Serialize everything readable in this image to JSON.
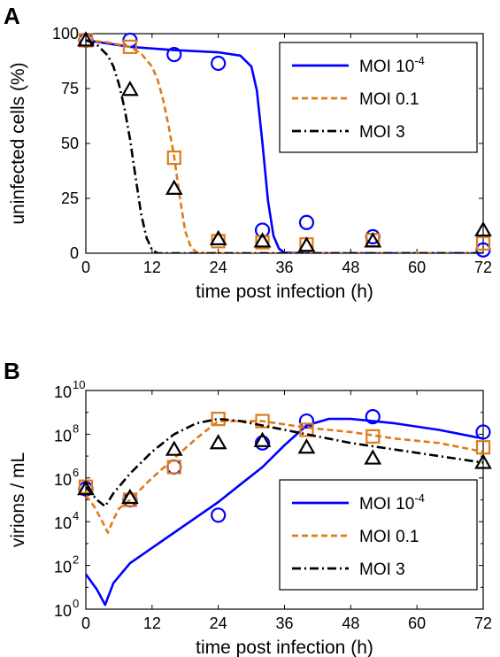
{
  "chart_data": [
    {
      "panel_label": "A",
      "type": "line",
      "xlabel": "time post infection (h)",
      "ylabel": "uninfected cells (%)",
      "xlim": [
        0,
        72
      ],
      "ylim": [
        0,
        100
      ],
      "xticks": [
        0,
        12,
        24,
        36,
        48,
        60,
        72
      ],
      "yticks": [
        0,
        25,
        50,
        75,
        100
      ],
      "yscale": "linear",
      "legend_position": "top-right",
      "series": [
        {
          "name": "MOI 10",
          "name_sup": "-4",
          "color": "#0000ff",
          "line": "solid",
          "marker": "circle",
          "curve": [
            [
              0,
              97
            ],
            [
              8,
              94
            ],
            [
              16,
              92.5
            ],
            [
              24,
              91.5
            ],
            [
              28,
              90
            ],
            [
              30,
              85
            ],
            [
              31,
              74
            ],
            [
              32,
              50
            ],
            [
              33,
              24
            ],
            [
              34,
              8
            ],
            [
              35,
              2
            ],
            [
              36,
              0.3
            ],
            [
              40,
              0
            ],
            [
              72,
              0
            ]
          ],
          "points": [
            [
              0,
              97
            ],
            [
              8,
              97
            ],
            [
              16,
              90.5
            ],
            [
              24,
              86.5
            ],
            [
              32,
              10.5
            ],
            [
              40,
              14
            ],
            [
              52,
              7.5
            ],
            [
              72,
              1.5
            ]
          ]
        },
        {
          "name": "MOI 0.1",
          "color": "#e07b1a",
          "line": "dashed",
          "marker": "square",
          "curve": [
            [
              0,
              97
            ],
            [
              4,
              96
            ],
            [
              8,
              94
            ],
            [
              10,
              91
            ],
            [
              12,
              85
            ],
            [
              13,
              79
            ],
            [
              14,
              70
            ],
            [
              15,
              58
            ],
            [
              16,
              44
            ],
            [
              17,
              26
            ],
            [
              18,
              10
            ],
            [
              19,
              3
            ],
            [
              20,
              0.5
            ],
            [
              22,
              0
            ],
            [
              72,
              0
            ]
          ],
          "points": [
            [
              0,
              97
            ],
            [
              8,
              94
            ],
            [
              16,
              43.5
            ],
            [
              24,
              5.5
            ],
            [
              32,
              5
            ],
            [
              40,
              4
            ],
            [
              52,
              6
            ],
            [
              72,
              4.5
            ]
          ]
        },
        {
          "name": "MOI 3",
          "color": "#000000",
          "line": "dashdot",
          "marker": "triangle",
          "curve": [
            [
              0,
              97
            ],
            [
              2,
              95
            ],
            [
              4,
              90
            ],
            [
              5,
              85
            ],
            [
              6,
              77
            ],
            [
              7,
              66
            ],
            [
              8,
              52
            ],
            [
              9,
              35
            ],
            [
              10,
              18
            ],
            [
              11,
              7
            ],
            [
              12,
              1.5
            ],
            [
              13,
              0
            ],
            [
              72,
              0
            ]
          ],
          "points": [
            [
              0,
              97
            ],
            [
              8,
              74.5
            ],
            [
              16,
              29.5
            ],
            [
              24,
              6.5
            ],
            [
              32,
              5.5
            ],
            [
              40,
              3.5
            ],
            [
              52,
              5.5
            ],
            [
              72,
              10.5
            ]
          ]
        }
      ]
    },
    {
      "panel_label": "B",
      "type": "line",
      "xlabel": "time post infection (h)",
      "ylabel": "virions / mL",
      "xlim": [
        0,
        72
      ],
      "ylim": [
        1,
        10000000000
      ],
      "xticks": [
        0,
        12,
        24,
        36,
        48,
        60,
        72
      ],
      "ytick_exponents": [
        0,
        2,
        4,
        6,
        8,
        10
      ],
      "yscale": "log10",
      "legend_position": "bottom-right",
      "series": [
        {
          "name": "MOI 10",
          "name_sup": "-4",
          "color": "#0000ff",
          "line": "solid",
          "marker": "circle",
          "curve_log10": [
            [
              0,
              1.6
            ],
            [
              2,
              0.9
            ],
            [
              3.5,
              0.2
            ],
            [
              5,
              1.2
            ],
            [
              8,
              2.1
            ],
            [
              12,
              2.8
            ],
            [
              16,
              3.5
            ],
            [
              20,
              4.2
            ],
            [
              24,
              4.9
            ],
            [
              28,
              5.7
            ],
            [
              32,
              6.5
            ],
            [
              36,
              7.5
            ],
            [
              40,
              8.4
            ],
            [
              44,
              8.7
            ],
            [
              48,
              8.7
            ],
            [
              56,
              8.5
            ],
            [
              64,
              8.2
            ],
            [
              72,
              7.8
            ]
          ],
          "points_log10": [
            [
              0,
              5.5
            ],
            [
              8,
              5
            ],
            [
              16,
              6.5
            ],
            [
              24,
              4.3
            ],
            [
              32,
              7.6
            ],
            [
              40,
              8.6
            ],
            [
              52,
              8.8
            ],
            [
              72,
              8.1
            ]
          ]
        },
        {
          "name": "MOI 0.1",
          "color": "#e07b1a",
          "line": "dashed",
          "marker": "square",
          "curve_log10": [
            [
              0,
              5.2
            ],
            [
              1.5,
              4.7
            ],
            [
              3,
              4
            ],
            [
              4,
              3.5
            ],
            [
              5,
              4.1
            ],
            [
              6,
              4.6
            ],
            [
              8,
              5
            ],
            [
              12,
              6
            ],
            [
              16,
              6.9
            ],
            [
              20,
              7.8
            ],
            [
              24,
              8.6
            ],
            [
              28,
              8.6
            ],
            [
              32,
              8.6
            ],
            [
              40,
              8.3
            ],
            [
              48,
              8.1
            ],
            [
              56,
              7.8
            ],
            [
              64,
              7.6
            ],
            [
              72,
              7.2
            ]
          ],
          "points_log10": [
            [
              0,
              5.6
            ],
            [
              8,
              5
            ],
            [
              16,
              6.5
            ],
            [
              24,
              8.7
            ],
            [
              32,
              8.6
            ],
            [
              40,
              8.2
            ],
            [
              52,
              7.9
            ],
            [
              72,
              7.4
            ]
          ]
        },
        {
          "name": "MOI 3",
          "color": "#000000",
          "line": "dashdot",
          "marker": "triangle",
          "curve_log10": [
            [
              0,
              5.6
            ],
            [
              2,
              5.0
            ],
            [
              3.5,
              4.7
            ],
            [
              5,
              5.3
            ],
            [
              8,
              6.2
            ],
            [
              12,
              7.2
            ],
            [
              16,
              8.0
            ],
            [
              20,
              8.5
            ],
            [
              24,
              8.7
            ],
            [
              28,
              8.6
            ],
            [
              32,
              8.4
            ],
            [
              40,
              8.0
            ],
            [
              48,
              7.6
            ],
            [
              56,
              7.3
            ],
            [
              64,
              7.0
            ],
            [
              72,
              6.7
            ]
          ],
          "points_log10": [
            [
              0,
              5.5
            ],
            [
              8,
              5.1
            ],
            [
              16,
              7.3
            ],
            [
              24,
              7.6
            ],
            [
              32,
              7.7
            ],
            [
              40,
              7.4
            ],
            [
              52,
              6.9
            ],
            [
              72,
              6.7
            ]
          ]
        }
      ]
    }
  ]
}
